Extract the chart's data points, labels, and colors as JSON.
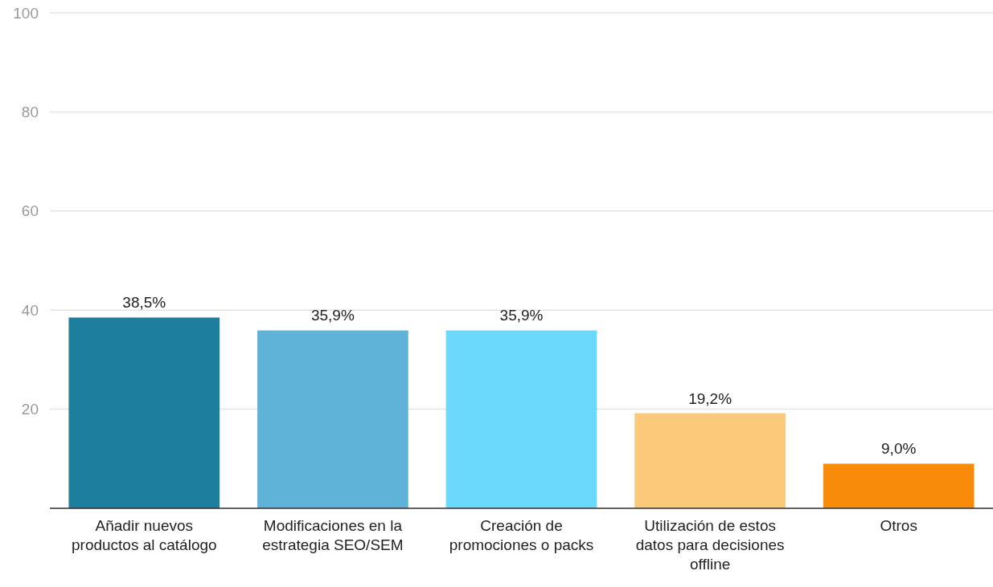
{
  "chart_data": {
    "type": "bar",
    "categories": [
      "Añadir nuevos productos al catálogo",
      "Modificaciones en la estrategia SEO/SEM",
      "Creación de promociones o packs",
      "Utilización de estos datos para decisiones offline",
      "Otros"
    ],
    "values": [
      38.5,
      35.9,
      35.9,
      19.2,
      9.0
    ],
    "colors": [
      "#1e7e9e",
      "#5fb2d8",
      "#6bd9fc",
      "#fbc97a",
      "#f88b09"
    ],
    "value_labels": [
      "38,5%",
      "35,9%",
      "35,9%",
      "19,2%",
      "9,0%"
    ],
    "ylim": [
      0,
      100
    ],
    "yticks": [
      {
        "value": 0,
        "label": null
      },
      20,
      40,
      60,
      80,
      100
    ],
    "grid": "y"
  }
}
